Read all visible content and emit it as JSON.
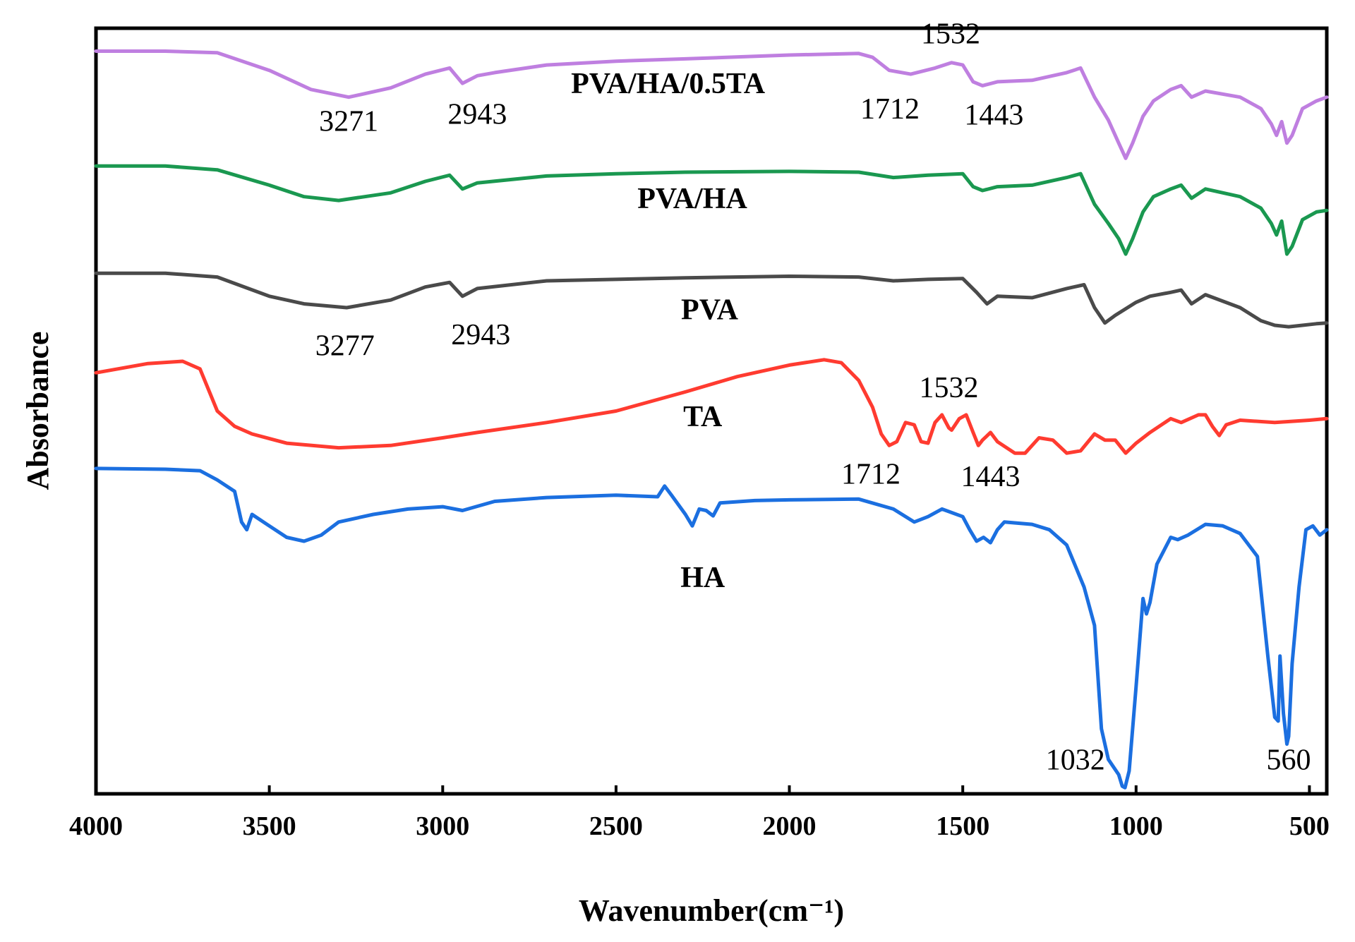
{
  "chart_data": {
    "type": "line",
    "title": "",
    "xlabel": "Wavenumber(cm⁻¹)",
    "ylabel": "Absorbance",
    "xlim": [
      4000,
      450
    ],
    "x_reversed": true,
    "ylim": [
      0,
      10
    ],
    "x_ticks": [
      4000,
      3500,
      3000,
      2500,
      2000,
      1500,
      1000,
      500
    ],
    "x_tick_labels": [
      "4000",
      "3500",
      "3000",
      "2500",
      "2000",
      "1500",
      "1000",
      "500"
    ],
    "y_ticks_shown": false,
    "grid": false,
    "series": [
      {
        "name": "PVA/HA/0.5TA",
        "color": "#bf7fe0",
        "label_pos": [
          2350,
          9.15
        ],
        "points": [
          [
            4000,
            9.7
          ],
          [
            3800,
            9.7
          ],
          [
            3650,
            9.68
          ],
          [
            3500,
            9.45
          ],
          [
            3380,
            9.2
          ],
          [
            3271,
            9.1
          ],
          [
            3150,
            9.22
          ],
          [
            3050,
            9.4
          ],
          [
            2980,
            9.48
          ],
          [
            2943,
            9.28
          ],
          [
            2900,
            9.38
          ],
          [
            2850,
            9.42
          ],
          [
            2700,
            9.52
          ],
          [
            2500,
            9.57
          ],
          [
            2300,
            9.6
          ],
          [
            2000,
            9.65
          ],
          [
            1800,
            9.67
          ],
          [
            1760,
            9.62
          ],
          [
            1712,
            9.45
          ],
          [
            1650,
            9.4
          ],
          [
            1580,
            9.48
          ],
          [
            1532,
            9.55
          ],
          [
            1500,
            9.52
          ],
          [
            1470,
            9.3
          ],
          [
            1443,
            9.25
          ],
          [
            1400,
            9.3
          ],
          [
            1300,
            9.32
          ],
          [
            1200,
            9.42
          ],
          [
            1160,
            9.48
          ],
          [
            1120,
            9.1
          ],
          [
            1080,
            8.8
          ],
          [
            1050,
            8.5
          ],
          [
            1030,
            8.3
          ],
          [
            1010,
            8.5
          ],
          [
            980,
            8.85
          ],
          [
            950,
            9.05
          ],
          [
            900,
            9.2
          ],
          [
            870,
            9.25
          ],
          [
            840,
            9.1
          ],
          [
            800,
            9.18
          ],
          [
            700,
            9.1
          ],
          [
            640,
            8.95
          ],
          [
            610,
            8.75
          ],
          [
            595,
            8.6
          ],
          [
            580,
            8.78
          ],
          [
            565,
            8.5
          ],
          [
            550,
            8.6
          ],
          [
            520,
            8.95
          ],
          [
            480,
            9.05
          ],
          [
            450,
            9.1
          ]
        ]
      },
      {
        "name": "PVA/HA",
        "color": "#1a9850",
        "label_pos": [
          2280,
          7.65
        ],
        "points": [
          [
            4000,
            8.2
          ],
          [
            3800,
            8.2
          ],
          [
            3650,
            8.15
          ],
          [
            3500,
            7.95
          ],
          [
            3400,
            7.8
          ],
          [
            3300,
            7.75
          ],
          [
            3150,
            7.85
          ],
          [
            3050,
            8.0
          ],
          [
            2980,
            8.08
          ],
          [
            2943,
            7.9
          ],
          [
            2900,
            7.98
          ],
          [
            2700,
            8.07
          ],
          [
            2500,
            8.1
          ],
          [
            2300,
            8.12
          ],
          [
            2000,
            8.13
          ],
          [
            1800,
            8.12
          ],
          [
            1700,
            8.05
          ],
          [
            1600,
            8.08
          ],
          [
            1500,
            8.1
          ],
          [
            1470,
            7.93
          ],
          [
            1443,
            7.88
          ],
          [
            1400,
            7.93
          ],
          [
            1300,
            7.95
          ],
          [
            1200,
            8.05
          ],
          [
            1160,
            8.1
          ],
          [
            1120,
            7.7
          ],
          [
            1080,
            7.45
          ],
          [
            1050,
            7.25
          ],
          [
            1030,
            7.05
          ],
          [
            1010,
            7.25
          ],
          [
            980,
            7.6
          ],
          [
            950,
            7.8
          ],
          [
            900,
            7.9
          ],
          [
            870,
            7.95
          ],
          [
            840,
            7.78
          ],
          [
            800,
            7.9
          ],
          [
            700,
            7.8
          ],
          [
            640,
            7.65
          ],
          [
            610,
            7.45
          ],
          [
            595,
            7.3
          ],
          [
            580,
            7.48
          ],
          [
            565,
            7.05
          ],
          [
            550,
            7.15
          ],
          [
            520,
            7.5
          ],
          [
            480,
            7.6
          ],
          [
            450,
            7.62
          ]
        ]
      },
      {
        "name": "PVA",
        "color": "#4a4a4a",
        "label_pos": [
          2230,
          6.2
        ],
        "points": [
          [
            4000,
            6.8
          ],
          [
            3800,
            6.8
          ],
          [
            3650,
            6.75
          ],
          [
            3500,
            6.5
          ],
          [
            3400,
            6.4
          ],
          [
            3277,
            6.35
          ],
          [
            3150,
            6.45
          ],
          [
            3050,
            6.62
          ],
          [
            2980,
            6.68
          ],
          [
            2943,
            6.5
          ],
          [
            2900,
            6.6
          ],
          [
            2700,
            6.7
          ],
          [
            2500,
            6.72
          ],
          [
            2300,
            6.74
          ],
          [
            2000,
            6.76
          ],
          [
            1800,
            6.75
          ],
          [
            1700,
            6.7
          ],
          [
            1600,
            6.72
          ],
          [
            1500,
            6.73
          ],
          [
            1460,
            6.55
          ],
          [
            1430,
            6.4
          ],
          [
            1400,
            6.5
          ],
          [
            1300,
            6.48
          ],
          [
            1200,
            6.6
          ],
          [
            1150,
            6.65
          ],
          [
            1120,
            6.35
          ],
          [
            1090,
            6.15
          ],
          [
            1060,
            6.25
          ],
          [
            1000,
            6.42
          ],
          [
            960,
            6.5
          ],
          [
            900,
            6.55
          ],
          [
            870,
            6.58
          ],
          [
            840,
            6.4
          ],
          [
            800,
            6.52
          ],
          [
            700,
            6.35
          ],
          [
            640,
            6.18
          ],
          [
            600,
            6.12
          ],
          [
            560,
            6.1
          ],
          [
            520,
            6.12
          ],
          [
            480,
            6.14
          ],
          [
            450,
            6.15
          ]
        ]
      },
      {
        "name": "TA",
        "color": "#ff3b30",
        "label_pos": [
          2250,
          4.8
        ],
        "points": [
          [
            4000,
            5.5
          ],
          [
            3850,
            5.62
          ],
          [
            3750,
            5.65
          ],
          [
            3700,
            5.55
          ],
          [
            3650,
            5.0
          ],
          [
            3600,
            4.8
          ],
          [
            3550,
            4.7
          ],
          [
            3450,
            4.58
          ],
          [
            3300,
            4.52
          ],
          [
            3150,
            4.55
          ],
          [
            3000,
            4.65
          ],
          [
            2900,
            4.72
          ],
          [
            2700,
            4.85
          ],
          [
            2500,
            5.0
          ],
          [
            2300,
            5.25
          ],
          [
            2150,
            5.45
          ],
          [
            2000,
            5.6
          ],
          [
            1900,
            5.67
          ],
          [
            1850,
            5.63
          ],
          [
            1800,
            5.4
          ],
          [
            1760,
            5.05
          ],
          [
            1735,
            4.7
          ],
          [
            1712,
            4.55
          ],
          [
            1690,
            4.6
          ],
          [
            1665,
            4.85
          ],
          [
            1640,
            4.82
          ],
          [
            1620,
            4.6
          ],
          [
            1600,
            4.58
          ],
          [
            1580,
            4.85
          ],
          [
            1560,
            4.95
          ],
          [
            1540,
            4.78
          ],
          [
            1532,
            4.75
          ],
          [
            1510,
            4.9
          ],
          [
            1490,
            4.95
          ],
          [
            1470,
            4.72
          ],
          [
            1455,
            4.55
          ],
          [
            1443,
            4.62
          ],
          [
            1420,
            4.72
          ],
          [
            1400,
            4.6
          ],
          [
            1350,
            4.45
          ],
          [
            1320,
            4.45
          ],
          [
            1280,
            4.65
          ],
          [
            1240,
            4.62
          ],
          [
            1200,
            4.45
          ],
          [
            1160,
            4.48
          ],
          [
            1120,
            4.7
          ],
          [
            1090,
            4.62
          ],
          [
            1060,
            4.62
          ],
          [
            1030,
            4.45
          ],
          [
            1000,
            4.58
          ],
          [
            960,
            4.72
          ],
          [
            900,
            4.9
          ],
          [
            870,
            4.85
          ],
          [
            820,
            4.95
          ],
          [
            800,
            4.95
          ],
          [
            780,
            4.8
          ],
          [
            760,
            4.68
          ],
          [
            740,
            4.82
          ],
          [
            700,
            4.88
          ],
          [
            600,
            4.85
          ],
          [
            500,
            4.88
          ],
          [
            450,
            4.9
          ]
        ]
      },
      {
        "name": "HA",
        "color": "#1b6fe0",
        "label_pos": [
          2250,
          2.7
        ],
        "points": [
          [
            4000,
            4.25
          ],
          [
            3800,
            4.24
          ],
          [
            3700,
            4.22
          ],
          [
            3650,
            4.1
          ],
          [
            3600,
            3.95
          ],
          [
            3580,
            3.55
          ],
          [
            3565,
            3.45
          ],
          [
            3550,
            3.65
          ],
          [
            3500,
            3.5
          ],
          [
            3450,
            3.35
          ],
          [
            3400,
            3.3
          ],
          [
            3350,
            3.38
          ],
          [
            3300,
            3.55
          ],
          [
            3200,
            3.65
          ],
          [
            3100,
            3.72
          ],
          [
            3000,
            3.75
          ],
          [
            2943,
            3.7
          ],
          [
            2850,
            3.82
          ],
          [
            2700,
            3.87
          ],
          [
            2500,
            3.9
          ],
          [
            2380,
            3.88
          ],
          [
            2360,
            4.02
          ],
          [
            2340,
            3.9
          ],
          [
            2300,
            3.65
          ],
          [
            2280,
            3.5
          ],
          [
            2260,
            3.72
          ],
          [
            2240,
            3.7
          ],
          [
            2220,
            3.63
          ],
          [
            2200,
            3.8
          ],
          [
            2100,
            3.83
          ],
          [
            2000,
            3.84
          ],
          [
            1800,
            3.85
          ],
          [
            1700,
            3.72
          ],
          [
            1640,
            3.55
          ],
          [
            1600,
            3.62
          ],
          [
            1560,
            3.72
          ],
          [
            1500,
            3.62
          ],
          [
            1480,
            3.45
          ],
          [
            1460,
            3.3
          ],
          [
            1440,
            3.35
          ],
          [
            1420,
            3.28
          ],
          [
            1400,
            3.45
          ],
          [
            1380,
            3.55
          ],
          [
            1300,
            3.52
          ],
          [
            1250,
            3.45
          ],
          [
            1200,
            3.25
          ],
          [
            1150,
            2.7
          ],
          [
            1120,
            2.2
          ],
          [
            1100,
            0.85
          ],
          [
            1080,
            0.45
          ],
          [
            1050,
            0.25
          ],
          [
            1040,
            0.1
          ],
          [
            1032,
            0.08
          ],
          [
            1020,
            0.3
          ],
          [
            1000,
            1.4
          ],
          [
            980,
            2.55
          ],
          [
            970,
            2.35
          ],
          [
            960,
            2.5
          ],
          [
            940,
            3.0
          ],
          [
            900,
            3.35
          ],
          [
            880,
            3.32
          ],
          [
            850,
            3.38
          ],
          [
            800,
            3.52
          ],
          [
            750,
            3.5
          ],
          [
            700,
            3.4
          ],
          [
            650,
            3.1
          ],
          [
            620,
            1.8
          ],
          [
            600,
            1.0
          ],
          [
            590,
            0.95
          ],
          [
            585,
            1.8
          ],
          [
            575,
            1.05
          ],
          [
            565,
            0.65
          ],
          [
            560,
            0.75
          ],
          [
            550,
            1.7
          ],
          [
            530,
            2.7
          ],
          [
            510,
            3.45
          ],
          [
            490,
            3.5
          ],
          [
            470,
            3.38
          ],
          [
            450,
            3.45
          ]
        ]
      }
    ],
    "annotations": [
      {
        "text": "3271",
        "x": 3271,
        "y": 8.66
      },
      {
        "text": "2943",
        "x": 2900,
        "y": 8.75
      },
      {
        "text": "1712",
        "x": 1710,
        "y": 8.82
      },
      {
        "text": "1443",
        "x": 1410,
        "y": 8.74
      },
      {
        "text": "1532",
        "x": 1535,
        "y": 9.8
      },
      {
        "text": "3277",
        "x": 3282,
        "y": 5.73
      },
      {
        "text": "2943",
        "x": 2890,
        "y": 5.87
      },
      {
        "text": "1532",
        "x": 1540,
        "y": 5.18
      },
      {
        "text": "1712",
        "x": 1765,
        "y": 4.05
      },
      {
        "text": "1443",
        "x": 1420,
        "y": 4.02
      },
      {
        "text": "1032",
        "x": 1175,
        "y": 0.32
      },
      {
        "text": "560",
        "x": 560,
        "y": 0.32
      }
    ]
  }
}
